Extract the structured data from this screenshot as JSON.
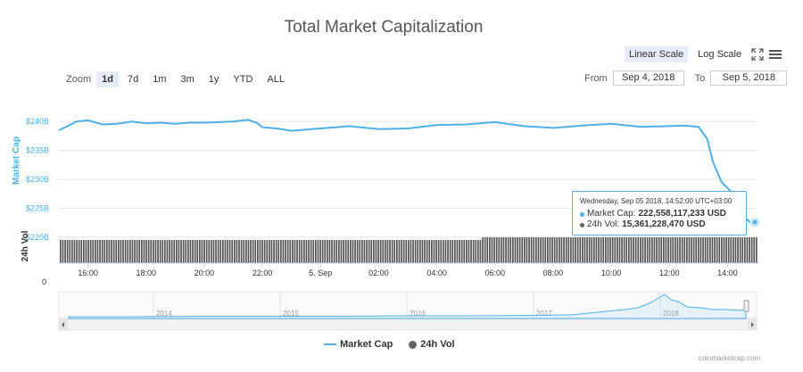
{
  "title": "Total Market Capitalization",
  "scale": {
    "linear": "Linear Scale",
    "log": "Log Scale"
  },
  "zoom": {
    "label": "Zoom",
    "buttons": [
      "1d",
      "7d",
      "1m",
      "3m",
      "1y",
      "YTD",
      "ALL"
    ],
    "active": "1d"
  },
  "range": {
    "from_label": "From",
    "from_value": "Sep 4, 2018",
    "to_label": "To",
    "to_value": "Sep 5, 2018"
  },
  "tooltip": {
    "date": "Wednesday, Sep 05 2018, 14:52:00 UTC+03:00",
    "mcap_label": "Market Cap:",
    "mcap_value": "222,558,117,233 USD",
    "vol_label": "24h Vol:",
    "vol_value": "15,361,228,470 USD"
  },
  "legend": {
    "mcap": "Market Cap",
    "vol": "24h Vol"
  },
  "credits": "coinmarketcap.com",
  "colors": {
    "line": "#4fb0e6",
    "vol": "#666666",
    "accent": "#4fb0e6"
  },
  "chart_data": {
    "type": "line",
    "title": "Total Market Capitalization",
    "ylabel": "Market Cap",
    "y_ticks": [
      "$240B",
      "$235B",
      "$230B",
      "$225B",
      "$220B"
    ],
    "y_tick_values": [
      240,
      235,
      230,
      225,
      220
    ],
    "ylim": [
      220,
      242.5
    ],
    "y2label": "24h Vol",
    "y2_ticks": [
      "0"
    ],
    "x_ticks": [
      "16:00",
      "18:00",
      "20:00",
      "22:00",
      "5. Sep",
      "02:00",
      "04:00",
      "06:00",
      "08:00",
      "10:00",
      "12:00",
      "14:00"
    ],
    "x_tick_hours": [
      16,
      18,
      20,
      22,
      24,
      26,
      28,
      30,
      32,
      34,
      36,
      38
    ],
    "xlim_hours": [
      15.0,
      39.0
    ],
    "series": [
      {
        "name": "Market Cap",
        "unit": "billion USD",
        "x_hours": [
          15.0,
          15.3,
          15.6,
          16.0,
          16.5,
          17.0,
          17.5,
          18.0,
          18.5,
          19.0,
          19.5,
          20.0,
          20.5,
          21.0,
          21.5,
          21.8,
          22.0,
          22.5,
          23.0,
          23.5,
          24.0,
          24.5,
          25.0,
          26.0,
          27.0,
          28.0,
          29.0,
          30.0,
          31.0,
          32.0,
          33.0,
          34.0,
          35.0,
          36.0,
          36.5,
          37.0,
          37.3,
          37.5,
          37.8,
          38.0,
          38.3,
          38.5,
          38.8,
          39.0
        ],
        "values": [
          238.5,
          239.2,
          240.0,
          240.2,
          239.5,
          239.6,
          240.0,
          239.7,
          239.8,
          239.6,
          239.8,
          239.8,
          239.9,
          240.0,
          240.3,
          239.8,
          239.0,
          238.8,
          238.4,
          238.6,
          238.8,
          239.0,
          239.2,
          238.7,
          238.8,
          239.4,
          239.5,
          239.9,
          239.2,
          238.9,
          239.3,
          239.6,
          239.1,
          239.2,
          239.3,
          239.1,
          237.0,
          233.0,
          229.5,
          228.5,
          227.0,
          223.8,
          222.5,
          222.6
        ]
      },
      {
        "name": "24h Vol"
      }
    ]
  },
  "navigator": {
    "years": [
      "2014",
      "2015",
      "2016",
      "2017",
      "2018"
    ]
  }
}
